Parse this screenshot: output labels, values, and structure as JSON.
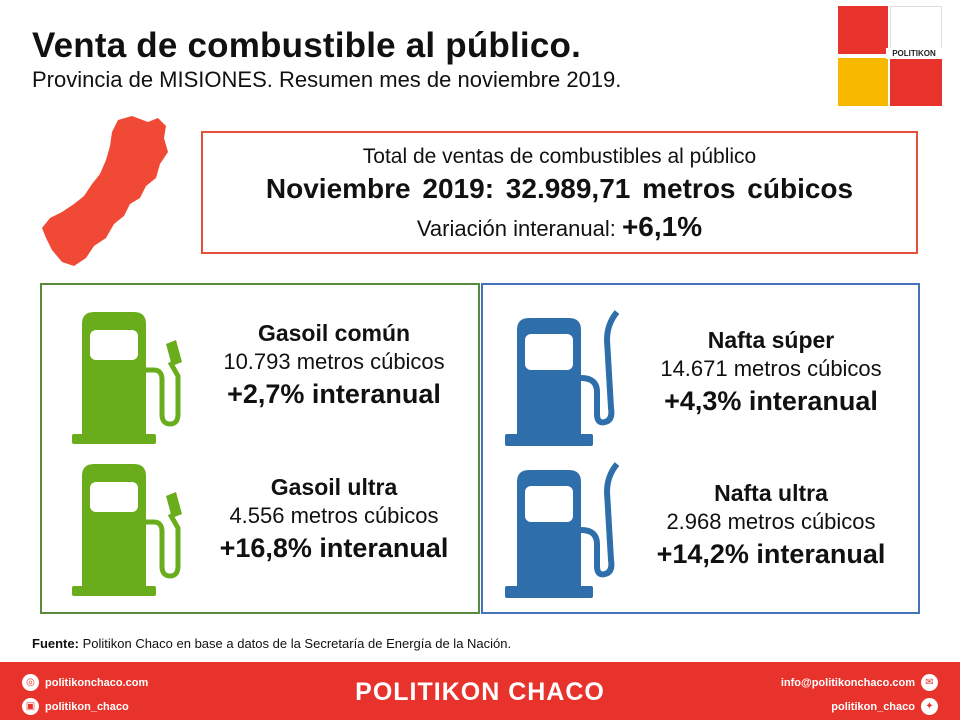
{
  "header": {
    "title": "Venta de combustible al público.",
    "subtitle": "Provincia de MISIONES. Resumen mes de noviembre 2019."
  },
  "logo": {
    "text": "POLITIKON"
  },
  "summary": {
    "line1": "Total de ventas de combustibles al público",
    "line2": "Noviembre 2019: 32.989,71 metros cúbicos",
    "variation_label": "Variación interanual: ",
    "variation_value": "+6,1%"
  },
  "fuels": [
    {
      "name": "Gasoil común",
      "volume": "10.793 metros cúbicos",
      "variation": "+2,7% interanual",
      "pump_color": "#6aad1c"
    },
    {
      "name": "Gasoil ultra",
      "volume": "4.556 metros cúbicos",
      "variation": "+16,8% interanual",
      "pump_color": "#6aad1c"
    },
    {
      "name": "Nafta súper",
      "volume": "14.671 metros cúbicos",
      "variation": "+4,3% interanual",
      "pump_color": "#2e6eaa"
    },
    {
      "name": "Nafta ultra",
      "volume": "2.968 metros cúbicos",
      "variation": "+14,2% interanual",
      "pump_color": "#2e6eaa"
    }
  ],
  "source": {
    "label": "Fuente:",
    "text": " Politikon Chaco en base a datos de la Secretaría  de Energía de la Nación."
  },
  "footer": {
    "brand": "POLITIKON CHACO",
    "web": "politikonchaco.com",
    "instagram": "politikon_chaco",
    "email": "info@politikonchaco.com",
    "twitter": "politikon_chaco"
  },
  "colors": {
    "accent_red": "#e8322c",
    "map_red": "#f04a36",
    "green_border": "#5a8a3c",
    "blue_border": "#4573b9",
    "logo_yellow": "#f9b800"
  }
}
